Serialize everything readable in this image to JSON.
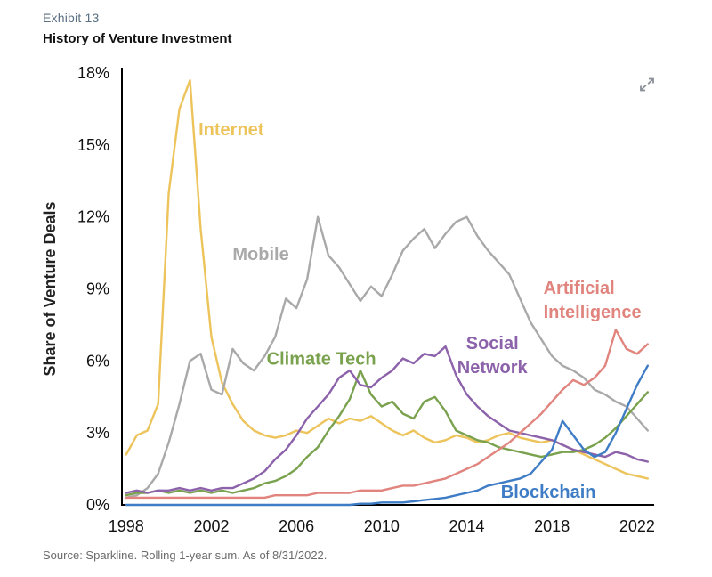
{
  "page": {
    "exhibit_label": "Exhibit 13",
    "title": "History of Venture Investment",
    "source": "Source: Sparkline. Rolling 1-year sum. As of 8/31/2022."
  },
  "icons": {
    "expand": "expand-icon"
  },
  "chart_data": {
    "type": "line",
    "title": "History of Venture Investment",
    "xlabel": "",
    "ylabel": "Share of Venture Deals",
    "xlim": [
      1997.8,
      2022.8
    ],
    "ylim": [
      0,
      18
    ],
    "grid": false,
    "legend": "inline-labels",
    "yticks": {
      "values": [
        0,
        3,
        6,
        9,
        12,
        15,
        18
      ],
      "labels": [
        "0%",
        "3%",
        "6%",
        "9%",
        "12%",
        "15%",
        "18%"
      ]
    },
    "xticks": {
      "values": [
        1998,
        2002,
        2006,
        2010,
        2014,
        2018,
        2022
      ],
      "labels": [
        "1998",
        "2002",
        "2006",
        "2010",
        "2014",
        "2018",
        "2022"
      ]
    },
    "x": [
      1998,
      1998.5,
      1999,
      1999.5,
      2000,
      2000.5,
      2001,
      2001.5,
      2002,
      2002.5,
      2003,
      2003.5,
      2004,
      2004.5,
      2005,
      2005.5,
      2006,
      2006.5,
      2007,
      2007.5,
      2008,
      2008.5,
      2009,
      2009.5,
      2010,
      2010.5,
      2011,
      2011.5,
      2012,
      2012.5,
      2013,
      2013.5,
      2014,
      2014.5,
      2015,
      2015.5,
      2016,
      2016.5,
      2017,
      2017.5,
      2018,
      2018.5,
      2019,
      2019.5,
      2020,
      2020.5,
      2021,
      2021.5,
      2022,
      2022.5
    ],
    "series": [
      {
        "name": "Internet",
        "color": "#EDC45C",
        "values": [
          2.1,
          2.9,
          3.1,
          4.2,
          13.0,
          16.5,
          17.7,
          11.5,
          7.0,
          5.1,
          4.2,
          3.5,
          3.1,
          2.9,
          2.8,
          2.9,
          3.1,
          3.0,
          3.3,
          3.6,
          3.4,
          3.6,
          3.5,
          3.7,
          3.4,
          3.1,
          2.9,
          3.1,
          2.8,
          2.6,
          2.7,
          2.9,
          2.8,
          2.6,
          2.7,
          2.9,
          3.0,
          2.8,
          2.7,
          2.6,
          2.7,
          2.5,
          2.3,
          2.1,
          1.9,
          1.7,
          1.5,
          1.3,
          1.2,
          1.1
        ]
      },
      {
        "name": "Mobile",
        "color": "#A9A9A9",
        "values": [
          0.3,
          0.4,
          0.7,
          1.3,
          2.6,
          4.2,
          6.0,
          6.3,
          4.8,
          4.6,
          6.5,
          5.9,
          5.6,
          6.2,
          7.0,
          8.6,
          8.2,
          9.4,
          12.0,
          10.4,
          9.9,
          9.2,
          8.5,
          9.1,
          8.7,
          9.6,
          10.6,
          11.1,
          11.5,
          10.7,
          11.3,
          11.8,
          12.0,
          11.2,
          10.6,
          10.1,
          9.6,
          8.6,
          7.6,
          6.9,
          6.2,
          5.8,
          5.6,
          5.3,
          4.8,
          4.6,
          4.3,
          4.1,
          3.6,
          3.1
        ]
      },
      {
        "name": "Climate Tech",
        "color": "#7AA24E",
        "values": [
          0.4,
          0.5,
          0.5,
          0.6,
          0.5,
          0.6,
          0.5,
          0.6,
          0.5,
          0.6,
          0.5,
          0.6,
          0.7,
          0.9,
          1.0,
          1.2,
          1.5,
          2.0,
          2.4,
          3.1,
          3.7,
          4.4,
          5.6,
          4.6,
          4.1,
          4.3,
          3.8,
          3.6,
          4.3,
          4.5,
          3.9,
          3.1,
          2.9,
          2.7,
          2.6,
          2.4,
          2.3,
          2.2,
          2.1,
          2.0,
          2.1,
          2.2,
          2.2,
          2.3,
          2.5,
          2.8,
          3.2,
          3.7,
          4.2,
          4.7
        ]
      },
      {
        "name": "Social Network",
        "color": "#8C62AB",
        "values": [
          0.5,
          0.6,
          0.5,
          0.6,
          0.6,
          0.7,
          0.6,
          0.7,
          0.6,
          0.7,
          0.7,
          0.9,
          1.1,
          1.4,
          1.9,
          2.3,
          2.9,
          3.6,
          4.1,
          4.6,
          5.3,
          5.6,
          5.0,
          4.9,
          5.3,
          5.6,
          6.1,
          5.9,
          6.3,
          6.2,
          6.6,
          5.4,
          4.6,
          4.1,
          3.7,
          3.4,
          3.1,
          3.0,
          2.9,
          2.8,
          2.7,
          2.5,
          2.3,
          2.2,
          2.1,
          2.0,
          2.2,
          2.1,
          1.9,
          1.8
        ]
      },
      {
        "name": "Artificial Intelligence",
        "color": "#E1847E",
        "values": [
          0.3,
          0.3,
          0.3,
          0.3,
          0.3,
          0.3,
          0.3,
          0.3,
          0.3,
          0.3,
          0.3,
          0.3,
          0.3,
          0.3,
          0.4,
          0.4,
          0.4,
          0.4,
          0.5,
          0.5,
          0.5,
          0.5,
          0.6,
          0.6,
          0.6,
          0.7,
          0.8,
          0.8,
          0.9,
          1.0,
          1.1,
          1.3,
          1.5,
          1.7,
          2.0,
          2.3,
          2.6,
          3.0,
          3.4,
          3.8,
          4.3,
          4.8,
          5.2,
          5.0,
          5.3,
          5.8,
          7.3,
          6.5,
          6.3,
          6.7
        ]
      },
      {
        "name": "Blockchain",
        "color": "#3E7CC6",
        "values": [
          0,
          0,
          0,
          0,
          0,
          0,
          0,
          0,
          0,
          0,
          0,
          0,
          0,
          0,
          0,
          0,
          0,
          0,
          0,
          0,
          0,
          0,
          0.05,
          0.05,
          0.1,
          0.1,
          0.1,
          0.15,
          0.2,
          0.25,
          0.3,
          0.4,
          0.5,
          0.6,
          0.8,
          0.9,
          1.0,
          1.1,
          1.3,
          1.8,
          2.3,
          3.5,
          2.9,
          2.3,
          2.0,
          2.2,
          3.0,
          4.0,
          5.0,
          5.8
        ]
      }
    ],
    "annotations": [
      {
        "lines": [
          "Internet"
        ],
        "x": 2001.4,
        "y": 15.4,
        "anchor": "start",
        "color": "#EDC45C"
      },
      {
        "lines": [
          "Mobile"
        ],
        "x": 2003.0,
        "y": 10.2,
        "anchor": "start",
        "color": "#A9A9A9"
      },
      {
        "lines": [
          "Climate Tech"
        ],
        "x": 2004.6,
        "y": 5.85,
        "anchor": "start",
        "color": "#7AA24E"
      },
      {
        "lines": [
          "Social",
          "Network"
        ],
        "x": 2015.2,
        "y": 6.5,
        "anchor": "middle",
        "color": "#8C62AB"
      },
      {
        "lines": [
          "Artificial",
          "Intelligence"
        ],
        "x": 2017.6,
        "y": 8.8,
        "anchor": "start",
        "color": "#E1847E"
      },
      {
        "lines": [
          "Blockchain"
        ],
        "x": 2015.6,
        "y": 0.3,
        "anchor": "start",
        "color": "#3E7CC6"
      }
    ]
  }
}
